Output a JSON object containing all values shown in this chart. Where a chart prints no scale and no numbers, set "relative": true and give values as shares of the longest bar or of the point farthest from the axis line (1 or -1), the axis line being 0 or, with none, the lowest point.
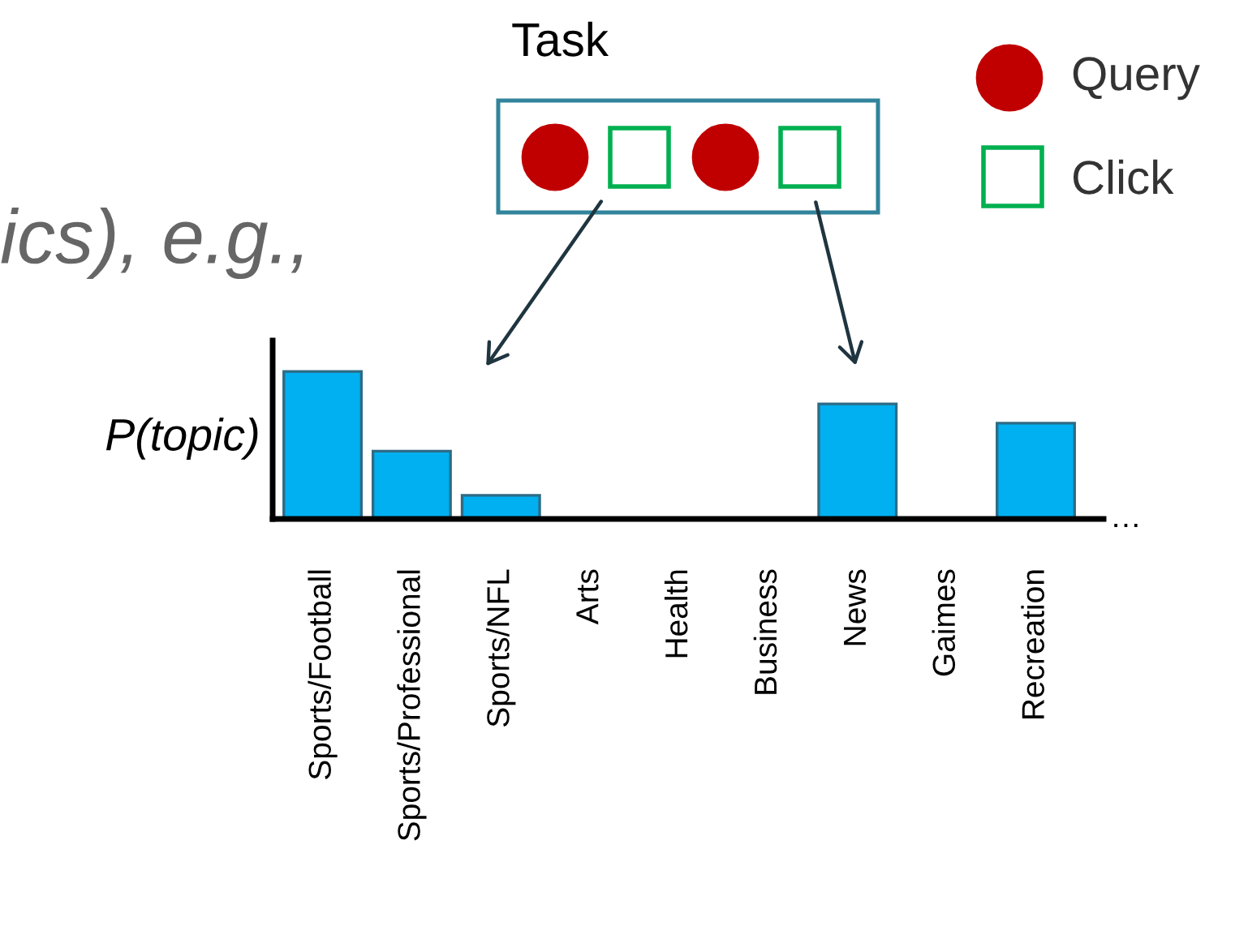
{
  "chart_data": {
    "type": "bar",
    "relative": true,
    "ylabel": "P(topic)",
    "color": "#00b0f0",
    "categories": [
      "Sports/Football",
      "Sports/Professional",
      "Sports/NFL",
      "Arts",
      "Health",
      "Business",
      "News",
      "Gaimes",
      "Recreation"
    ],
    "values": [
      1,
      0.46,
      0.16,
      0,
      0,
      0,
      0.78,
      0,
      0.65
    ],
    "annotations": [
      "Task",
      "Query",
      "Click",
      "ics), e.g.,",
      "…"
    ]
  }
}
